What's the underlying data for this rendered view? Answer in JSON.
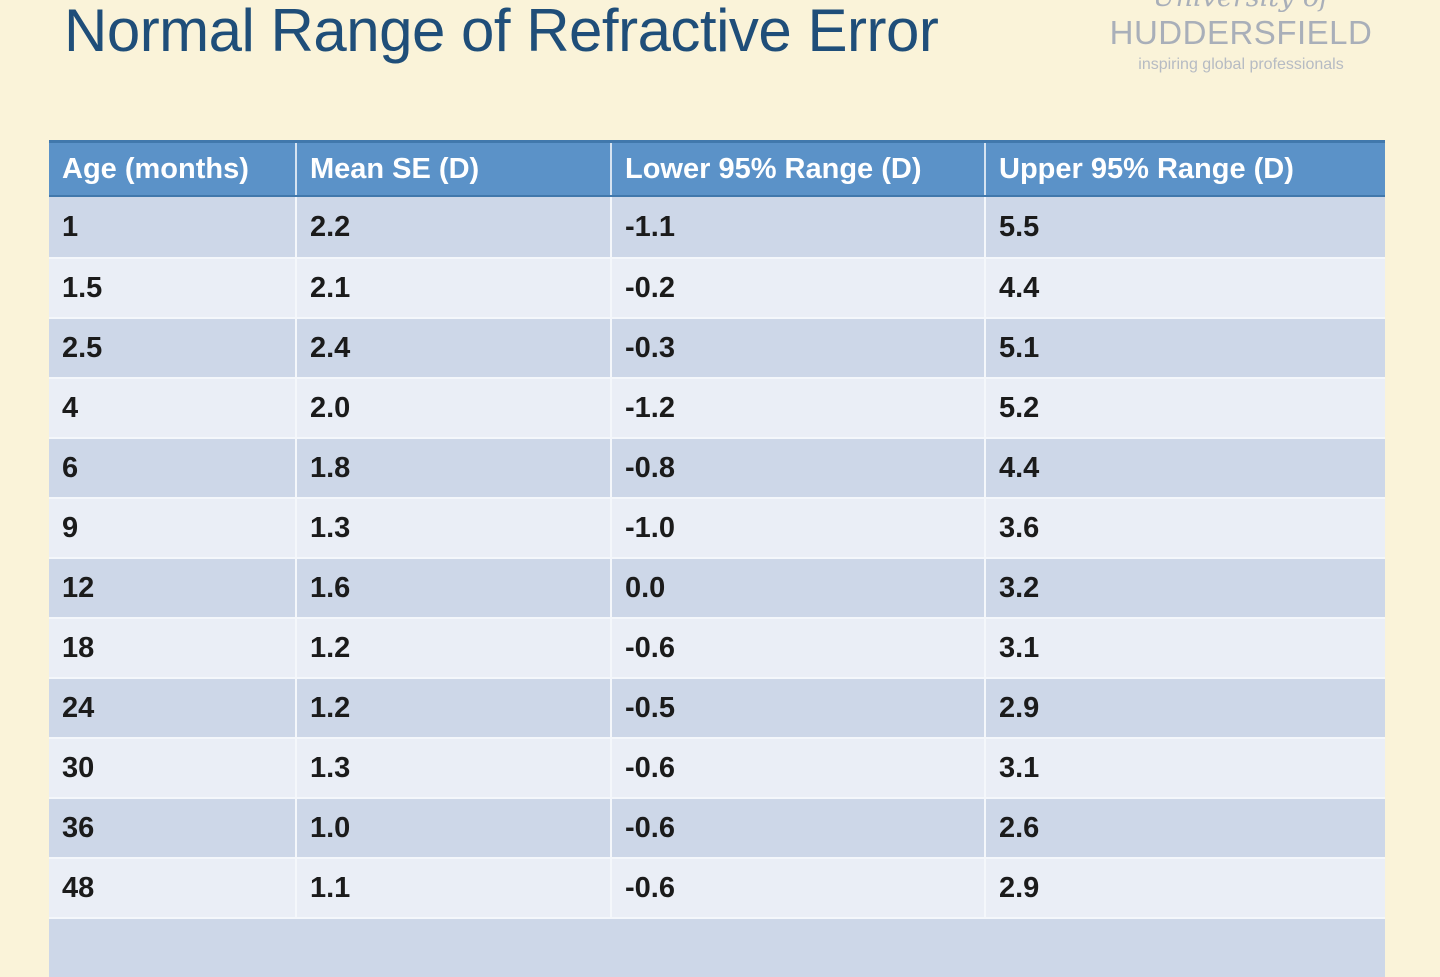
{
  "slide": {
    "title": "Normal Range of Refractive Error"
  },
  "logo": {
    "university_of": "University of",
    "name": "HUDDERSFIELD",
    "tagline": "inspiring global professionals"
  },
  "table": {
    "columns": [
      "Age (months)",
      "Mean SE (D)",
      "Lower 95% Range (D)",
      "Upper 95% Range (D)"
    ],
    "rows": [
      [
        "1",
        "2.2",
        "-1.1",
        "5.5"
      ],
      [
        "1.5",
        "2.1",
        "-0.2",
        "4.4"
      ],
      [
        "2.5",
        "2.4",
        "-0.3",
        "5.1"
      ],
      [
        "4",
        "2.0",
        "-1.2",
        "5.2"
      ],
      [
        "6",
        "1.8",
        "-0.8",
        "4.4"
      ],
      [
        "9",
        "1.3",
        "-1.0",
        "3.6"
      ],
      [
        "12",
        "1.6",
        "0.0",
        "3.2"
      ],
      [
        "18",
        "1.2",
        "-0.6",
        "3.1"
      ],
      [
        "24",
        "1.2",
        "-0.5",
        "2.9"
      ],
      [
        "30",
        "1.3",
        "-0.6",
        "3.1"
      ],
      [
        "36",
        "1.0",
        "-0.6",
        "2.6"
      ],
      [
        "48",
        "1.1",
        "-0.6",
        "2.9"
      ]
    ]
  },
  "chart_data": {
    "type": "table",
    "title": "Normal Range of Refractive Error",
    "columns": [
      "Age (months)",
      "Mean SE (D)",
      "Lower 95% Range (D)",
      "Upper 95% Range (D)"
    ],
    "rows": [
      [
        1,
        2.2,
        -1.1,
        5.5
      ],
      [
        1.5,
        2.1,
        -0.2,
        4.4
      ],
      [
        2.5,
        2.4,
        -0.3,
        5.1
      ],
      [
        4,
        2.0,
        -1.2,
        5.2
      ],
      [
        6,
        1.8,
        -0.8,
        4.4
      ],
      [
        9,
        1.3,
        -1.0,
        3.6
      ],
      [
        12,
        1.6,
        0.0,
        3.2
      ],
      [
        18,
        1.2,
        -0.6,
        3.1
      ],
      [
        24,
        1.2,
        -0.5,
        2.9
      ],
      [
        30,
        1.3,
        -0.6,
        3.1
      ],
      [
        36,
        1.0,
        -0.6,
        2.6
      ],
      [
        48,
        1.1,
        -0.6,
        2.9
      ]
    ]
  },
  "colors": {
    "background": "#FAF3D9",
    "title": "#1F4E79",
    "header_bg": "#5B92C8",
    "header_border": "#4178AC",
    "header_text": "#FFFFFF",
    "row_dark": "#CDD7E8",
    "row_light": "#EAEEF6",
    "divider": "#F4F7FB",
    "cell_text": "#1B1B1B",
    "logo_gray": "#A9AFB9"
  }
}
